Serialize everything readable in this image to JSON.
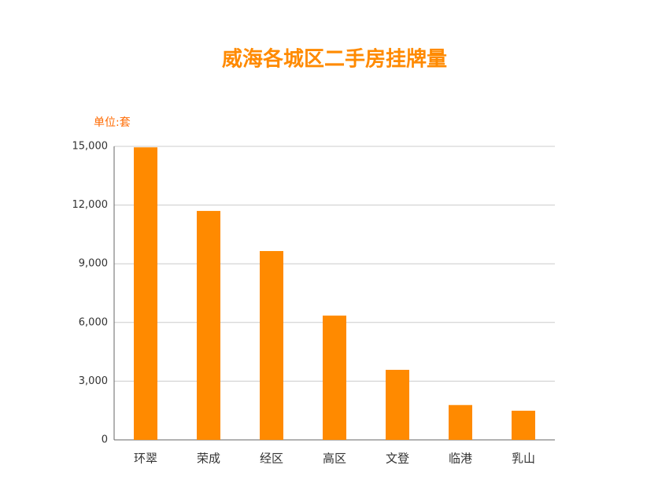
{
  "chart_data": {
    "type": "bar",
    "title": "威海各城区二手房挂牌量",
    "y_axis_label": "单位:套",
    "categories": [
      "环翠",
      "荣成",
      "经区",
      "高区",
      "文登",
      "临港",
      "乳山"
    ],
    "values": [
      14950,
      11700,
      9650,
      6350,
      3580,
      1780,
      1490
    ],
    "color": "#ff8a00",
    "ylim": [
      0,
      15000
    ],
    "yticks": [
      0,
      {
        "value": 3000,
        "label": "3,000"
      },
      {
        "value": 6000,
        "label": "6,000"
      },
      {
        "value": 9000,
        "label": "9,000"
      },
      {
        "value": 12000,
        "label": "12,000"
      },
      {
        "value": 15000,
        "label": "15,000"
      }
    ],
    "grid": true
  }
}
